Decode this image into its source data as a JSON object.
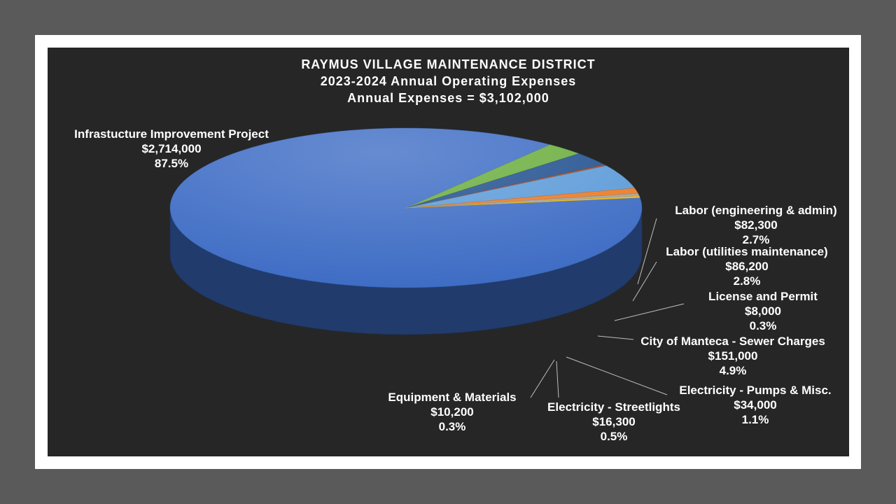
{
  "chart_data": {
    "type": "pie",
    "title": "RAYMUS VILLAGE MAINTENANCE DISTRICT",
    "subtitle": "2023-2024 Annual Operating Expenses",
    "total_line": "Annual Expenses = $3,102,000",
    "slices": [
      {
        "name": "Infrastucture Improvement Project",
        "value": 2714000,
        "value_label": "$2,714,000",
        "percent": "87.5%",
        "color": "#3c6bc4"
      },
      {
        "name": "Labor (engineering & admin)",
        "value": 82300,
        "value_label": "$82,300",
        "percent": "2.7%",
        "color": "#6aad3d"
      },
      {
        "name": "Labor (utilities maintenance)",
        "value": 86200,
        "value_label": "$86,200",
        "percent": "2.8%",
        "color": "#21508f"
      },
      {
        "name": "License and Permit",
        "value": 8000,
        "value_label": "$8,000",
        "percent": "0.3%",
        "color": "#a6411b"
      },
      {
        "name": "City of Manteca - Sewer Charges",
        "value": 151000,
        "value_label": "$151,000",
        "percent": "4.9%",
        "color": "#5b9ad8"
      },
      {
        "name": "Electricity - Pumps & Misc.",
        "value": 34000,
        "value_label": "$34,000",
        "percent": "1.1%",
        "color": "#ec7a23"
      },
      {
        "name": "Electricity - Streetlights",
        "value": 16300,
        "value_label": "$16,300",
        "percent": "0.5%",
        "color": "#a3a3a3"
      },
      {
        "name": "Equipment & Materials",
        "value": 10200,
        "value_label": "$10,200",
        "percent": "0.3%",
        "color": "#f1bd1a"
      }
    ]
  }
}
